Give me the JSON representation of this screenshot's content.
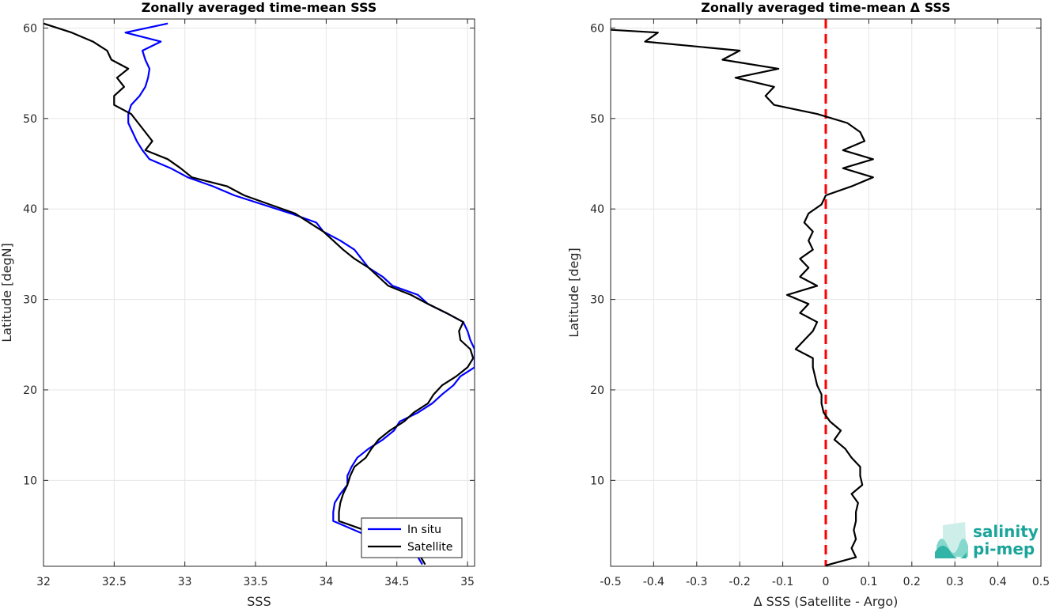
{
  "chart_data": [
    {
      "type": "line",
      "title": "Zonally averaged time-mean SSS",
      "xlabel": "SSS",
      "ylabel": "Latitude [degN]",
      "xlim": [
        32,
        35.05
      ],
      "ylim": [
        0.5,
        61
      ],
      "xticks": [
        "32",
        "32.5",
        "33",
        "33.5",
        "34",
        "34.5",
        "35"
      ],
      "yticks": [
        "10",
        "20",
        "30",
        "40",
        "50",
        "60"
      ],
      "grid": true,
      "legend": {
        "position": "bottom-right",
        "entries": [
          "In situ",
          "Satellite"
        ]
      },
      "series": [
        {
          "name": "In situ",
          "color": "#0000ff",
          "points": [
            [
              32.88,
              60.5
            ],
            [
              32.58,
              59.5
            ],
            [
              32.83,
              58.5
            ],
            [
              32.7,
              57.5
            ],
            [
              32.72,
              56.5
            ],
            [
              32.75,
              55.5
            ],
            [
              32.74,
              54.5
            ],
            [
              32.72,
              53.5
            ],
            [
              32.68,
              52.5
            ],
            [
              32.62,
              51.5
            ],
            [
              32.6,
              50.5
            ],
            [
              32.6,
              49.5
            ],
            [
              32.63,
              48.5
            ],
            [
              32.66,
              47.5
            ],
            [
              32.7,
              46.5
            ],
            [
              32.75,
              45.5
            ],
            [
              32.9,
              44.5
            ],
            [
              33.02,
              43.5
            ],
            [
              33.2,
              42.5
            ],
            [
              33.35,
              41.5
            ],
            [
              33.55,
              40.5
            ],
            [
              33.75,
              39.5
            ],
            [
              33.93,
              38.5
            ],
            [
              33.98,
              37.5
            ],
            [
              34.1,
              36.5
            ],
            [
              34.2,
              35.5
            ],
            [
              34.25,
              34.5
            ],
            [
              34.3,
              33.5
            ],
            [
              34.4,
              32.5
            ],
            [
              34.47,
              31.5
            ],
            [
              34.65,
              30.5
            ],
            [
              34.72,
              29.5
            ],
            [
              34.85,
              28.5
            ],
            [
              34.97,
              27.5
            ],
            [
              35.0,
              26.5
            ],
            [
              35.02,
              25.5
            ],
            [
              35.05,
              24.5
            ],
            [
              35.05,
              23.5
            ],
            [
              35.05,
              22.5
            ],
            [
              34.95,
              21.5
            ],
            [
              34.9,
              20.5
            ],
            [
              34.82,
              19.5
            ],
            [
              34.75,
              18.5
            ],
            [
              34.65,
              17.5
            ],
            [
              34.52,
              16.5
            ],
            [
              34.48,
              15.5
            ],
            [
              34.4,
              14.5
            ],
            [
              34.3,
              13.5
            ],
            [
              34.22,
              12.5
            ],
            [
              34.18,
              11.5
            ],
            [
              34.15,
              10.5
            ],
            [
              34.15,
              9.5
            ],
            [
              34.1,
              8.5
            ],
            [
              34.06,
              7.5
            ],
            [
              34.05,
              6.5
            ],
            [
              34.05,
              5.5
            ],
            [
              34.2,
              4.5
            ],
            [
              34.35,
              3.5
            ],
            [
              34.5,
              2.5
            ],
            [
              34.65,
              1.5
            ],
            [
              34.68,
              0.7
            ]
          ]
        },
        {
          "name": "Satellite",
          "color": "#000000",
          "points": [
            [
              32.0,
              60.5
            ],
            [
              32.2,
              59.5
            ],
            [
              32.35,
              58.5
            ],
            [
              32.45,
              57.5
            ],
            [
              32.48,
              56.5
            ],
            [
              32.6,
              55.5
            ],
            [
              32.52,
              54.5
            ],
            [
              32.57,
              53.5
            ],
            [
              32.5,
              52.5
            ],
            [
              32.5,
              51.5
            ],
            [
              32.62,
              50.5
            ],
            [
              32.67,
              49.5
            ],
            [
              32.72,
              48.5
            ],
            [
              32.77,
              47.5
            ],
            [
              32.72,
              46.5
            ],
            [
              32.88,
              45.5
            ],
            [
              32.97,
              44.5
            ],
            [
              33.05,
              43.5
            ],
            [
              33.3,
              42.5
            ],
            [
              33.42,
              41.5
            ],
            [
              33.6,
              40.5
            ],
            [
              33.78,
              39.5
            ],
            [
              33.88,
              38.5
            ],
            [
              33.98,
              37.5
            ],
            [
              34.05,
              36.5
            ],
            [
              34.12,
              35.5
            ],
            [
              34.2,
              34.5
            ],
            [
              34.3,
              33.5
            ],
            [
              34.37,
              32.5
            ],
            [
              34.44,
              31.5
            ],
            [
              34.6,
              30.5
            ],
            [
              34.72,
              29.5
            ],
            [
              34.85,
              28.5
            ],
            [
              34.97,
              27.5
            ],
            [
              34.94,
              26.5
            ],
            [
              34.95,
              25.5
            ],
            [
              35.02,
              24.5
            ],
            [
              35.04,
              23.5
            ],
            [
              35.0,
              22.5
            ],
            [
              34.92,
              21.5
            ],
            [
              34.82,
              20.5
            ],
            [
              34.76,
              19.5
            ],
            [
              34.72,
              18.5
            ],
            [
              34.62,
              17.5
            ],
            [
              34.55,
              16.5
            ],
            [
              34.45,
              15.5
            ],
            [
              34.37,
              14.5
            ],
            [
              34.32,
              13.5
            ],
            [
              34.28,
              12.5
            ],
            [
              34.2,
              11.5
            ],
            [
              34.17,
              10.5
            ],
            [
              34.15,
              9.5
            ],
            [
              34.12,
              8.5
            ],
            [
              34.1,
              7.5
            ],
            [
              34.09,
              6.5
            ],
            [
              34.09,
              5.5
            ],
            [
              34.27,
              4.5
            ],
            [
              34.45,
              3.5
            ],
            [
              34.58,
              2.5
            ],
            [
              34.67,
              1.5
            ],
            [
              34.7,
              0.7
            ]
          ]
        }
      ]
    },
    {
      "type": "line",
      "title": "Zonally averaged time-mean Δ SSS",
      "xlabel": "Δ SSS (Satellite - Argo)",
      "ylabel": "Latitude [deg]",
      "xlim": [
        -0.5,
        0.5
      ],
      "ylim": [
        0.5,
        61
      ],
      "xticks": [
        "-0.5",
        "-0.4",
        "-0.3",
        "-0.2",
        "-0.1",
        "0",
        "0.1",
        "0.2",
        "0.3",
        "0.4",
        "0.5"
      ],
      "yticks": [
        "10",
        "20",
        "30",
        "40",
        "50",
        "60"
      ],
      "grid": true,
      "reference_line": {
        "x": 0,
        "color": "#ff0000",
        "style": "dashed"
      },
      "series": [
        {
          "color": "#000000",
          "points": [
            [
              -0.5,
              59.8
            ],
            [
              -0.39,
              59.5
            ],
            [
              -0.42,
              58.5
            ],
            [
              -0.2,
              57.5
            ],
            [
              -0.24,
              56.5
            ],
            [
              -0.11,
              55.5
            ],
            [
              -0.21,
              54.5
            ],
            [
              -0.12,
              53.5
            ],
            [
              -0.14,
              52.5
            ],
            [
              -0.12,
              51.5
            ],
            [
              -0.02,
              50.5
            ],
            [
              0.05,
              49.5
            ],
            [
              0.08,
              48.5
            ],
            [
              0.09,
              47.5
            ],
            [
              0.04,
              46.5
            ],
            [
              0.11,
              45.5
            ],
            [
              0.04,
              44.5
            ],
            [
              0.11,
              43.5
            ],
            [
              0.06,
              42.5
            ],
            [
              0.0,
              41.5
            ],
            [
              -0.01,
              40.5
            ],
            [
              -0.04,
              39.5
            ],
            [
              -0.05,
              38.5
            ],
            [
              -0.03,
              37.5
            ],
            [
              -0.04,
              36.5
            ],
            [
              -0.03,
              35.5
            ],
            [
              -0.06,
              34.5
            ],
            [
              -0.04,
              33.5
            ],
            [
              -0.06,
              32.5
            ],
            [
              -0.02,
              31.5
            ],
            [
              -0.09,
              30.5
            ],
            [
              -0.04,
              29.5
            ],
            [
              -0.06,
              28.5
            ],
            [
              -0.02,
              27.5
            ],
            [
              -0.03,
              26.5
            ],
            [
              -0.05,
              25.5
            ],
            [
              -0.07,
              24.5
            ],
            [
              -0.03,
              23.5
            ],
            [
              -0.03,
              22.5
            ],
            [
              -0.025,
              21.5
            ],
            [
              -0.02,
              20.5
            ],
            [
              -0.01,
              19.5
            ],
            [
              -0.01,
              18.5
            ],
            [
              -0.005,
              17.5
            ],
            [
              0.01,
              16.5
            ],
            [
              0.035,
              15.5
            ],
            [
              0.02,
              14.5
            ],
            [
              0.045,
              13.5
            ],
            [
              0.06,
              12.5
            ],
            [
              0.08,
              11.5
            ],
            [
              0.08,
              10.5
            ],
            [
              0.085,
              9.5
            ],
            [
              0.06,
              8.5
            ],
            [
              0.075,
              7.5
            ],
            [
              0.07,
              6.5
            ],
            [
              0.07,
              5.5
            ],
            [
              0.065,
              4.5
            ],
            [
              0.07,
              3.5
            ],
            [
              0.06,
              2.5
            ],
            [
              0.07,
              1.5
            ],
            [
              0.0,
              0.6
            ]
          ]
        }
      ]
    }
  ],
  "logo": {
    "line1": "salinity",
    "line2": "pi-mep"
  }
}
